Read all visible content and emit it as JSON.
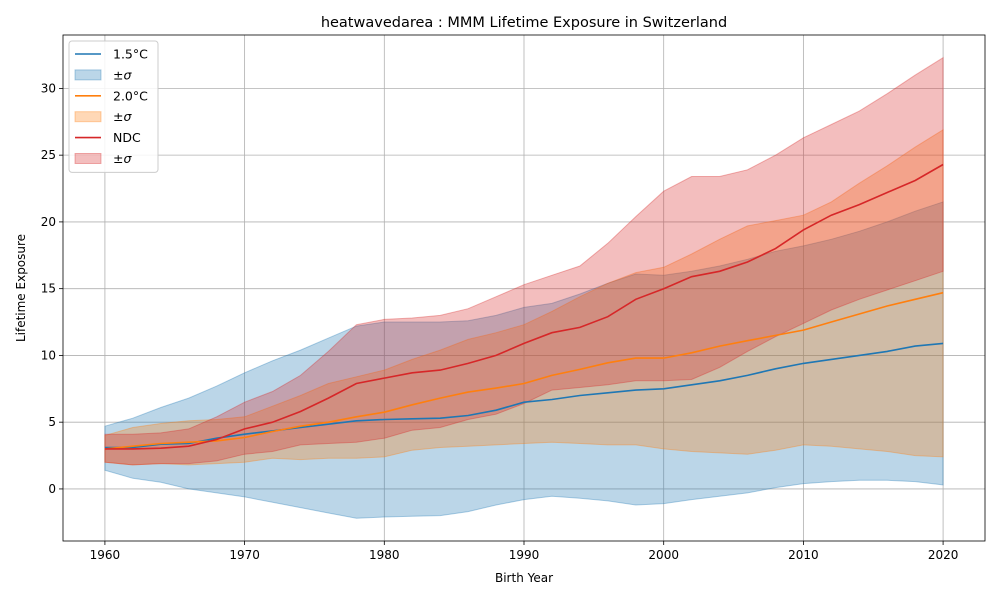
{
  "chart_data": {
    "type": "line",
    "title": "heatwavedarea : MMM Lifetime Exposure in Switzerland",
    "xlabel": "Birth Year",
    "ylabel": "Lifetime Exposure",
    "xlim": [
      1957,
      2023
    ],
    "ylim": [
      -3.9,
      34
    ],
    "xticks": [
      1960,
      1970,
      1980,
      1990,
      2000,
      2010,
      2020
    ],
    "yticks": [
      0,
      5,
      10,
      15,
      20,
      25,
      30
    ],
    "grid": true,
    "legend_position": "top-left",
    "x": [
      1960,
      1962,
      1964,
      1966,
      1968,
      1970,
      1972,
      1974,
      1976,
      1978,
      1980,
      1982,
      1984,
      1986,
      1988,
      1990,
      1992,
      1994,
      1996,
      1998,
      2000,
      2002,
      2004,
      2006,
      2008,
      2010,
      2012,
      2014,
      2016,
      2018,
      2020
    ],
    "series": [
      {
        "name": "1.5°C",
        "band_label": "±σ",
        "color": "#1f77b4",
        "band_color": "#1f77b4",
        "values": [
          3.1,
          3.1,
          3.35,
          3.4,
          3.8,
          4.1,
          4.35,
          4.6,
          4.85,
          5.1,
          5.2,
          5.25,
          5.3,
          5.5,
          5.9,
          6.5,
          6.7,
          7.0,
          7.2,
          7.4,
          7.5,
          7.8,
          8.1,
          8.5,
          9.0,
          9.4,
          9.7,
          10.0,
          10.3,
          10.7,
          10.9
        ],
        "upper": [
          4.7,
          5.3,
          6.1,
          6.8,
          7.7,
          8.7,
          9.6,
          10.4,
          11.3,
          12.2,
          12.5,
          12.5,
          12.5,
          12.6,
          13.0,
          13.6,
          13.9,
          14.6,
          15.4,
          16.1,
          16.0,
          16.3,
          16.7,
          17.2,
          17.8,
          18.2,
          18.7,
          19.3,
          20.0,
          20.8,
          21.5
        ],
        "lower": [
          1.4,
          0.8,
          0.5,
          0.0,
          -0.3,
          -0.6,
          -1.0,
          -1.4,
          -1.8,
          -2.2,
          -2.1,
          -2.05,
          -2.0,
          -1.7,
          -1.2,
          -0.8,
          -0.55,
          -0.7,
          -0.9,
          -1.2,
          -1.1,
          -0.8,
          -0.55,
          -0.3,
          0.1,
          0.4,
          0.55,
          0.65,
          0.65,
          0.55,
          0.3
        ]
      },
      {
        "name": "2.0°C",
        "band_label": "±σ",
        "color": "#ff7f0e",
        "band_color": "#ff7f0e",
        "values": [
          3.0,
          3.2,
          3.4,
          3.5,
          3.6,
          3.85,
          4.3,
          4.7,
          5.0,
          5.4,
          5.75,
          6.3,
          6.8,
          7.25,
          7.55,
          7.9,
          8.5,
          8.95,
          9.45,
          9.8,
          9.8,
          10.2,
          10.7,
          11.1,
          11.5,
          11.9,
          12.5,
          13.1,
          13.7,
          14.2,
          14.7
        ],
        "upper": [
          4.0,
          4.6,
          4.9,
          5.1,
          5.2,
          5.4,
          6.2,
          7.0,
          7.9,
          8.4,
          8.9,
          9.7,
          10.4,
          11.2,
          11.7,
          12.3,
          13.3,
          14.4,
          15.4,
          16.2,
          16.6,
          17.6,
          18.7,
          19.7,
          20.1,
          20.5,
          21.5,
          22.9,
          24.2,
          25.6,
          26.9
        ],
        "lower": [
          2.0,
          1.8,
          1.9,
          1.8,
          1.9,
          2.0,
          2.3,
          2.2,
          2.3,
          2.3,
          2.4,
          2.9,
          3.1,
          3.2,
          3.3,
          3.4,
          3.5,
          3.4,
          3.3,
          3.3,
          3.0,
          2.8,
          2.7,
          2.6,
          2.9,
          3.3,
          3.2,
          3.0,
          2.8,
          2.5,
          2.4
        ]
      },
      {
        "name": "NDC",
        "band_label": "±σ",
        "color": "#d62728",
        "band_color": "#d62728",
        "values": [
          3.0,
          3.0,
          3.05,
          3.2,
          3.7,
          4.5,
          5.0,
          5.8,
          6.8,
          7.9,
          8.3,
          8.7,
          8.9,
          9.4,
          10.0,
          10.9,
          11.7,
          12.1,
          12.9,
          14.2,
          15.0,
          15.9,
          16.3,
          17.0,
          18.0,
          19.4,
          20.5,
          21.3,
          22.2,
          23.1,
          24.3
        ],
        "upper": [
          4.1,
          4.1,
          4.2,
          4.5,
          5.4,
          6.5,
          7.3,
          8.5,
          10.3,
          12.3,
          12.7,
          12.8,
          13.0,
          13.5,
          14.4,
          15.3,
          16.0,
          16.7,
          18.4,
          20.4,
          22.3,
          23.4,
          23.4,
          23.9,
          25.0,
          26.3,
          27.3,
          28.3,
          29.6,
          31.0,
          32.3
        ],
        "lower": [
          2.0,
          1.8,
          1.9,
          1.9,
          2.1,
          2.6,
          2.8,
          3.3,
          3.4,
          3.5,
          3.8,
          4.4,
          4.6,
          5.2,
          5.6,
          6.4,
          7.4,
          7.6,
          7.8,
          8.1,
          8.1,
          8.2,
          9.1,
          10.3,
          11.4,
          12.4,
          13.4,
          14.2,
          14.9,
          15.6,
          16.3
        ]
      }
    ]
  }
}
